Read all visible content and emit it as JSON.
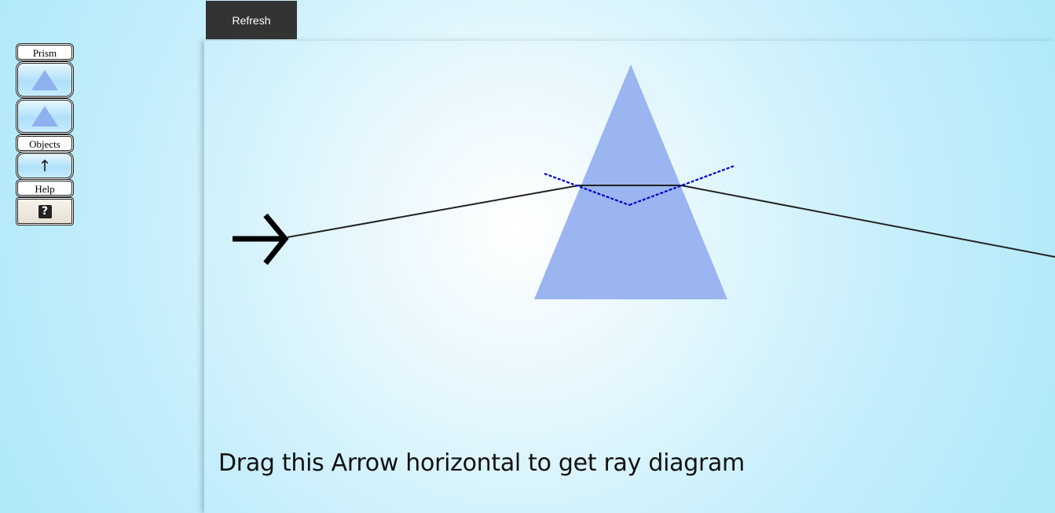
{
  "toolbar": {
    "refresh_label": "Refresh"
  },
  "sidebar": {
    "prism_label": "Prism",
    "objects_label": "Objects",
    "help_label": "Help",
    "items": [
      {
        "name": "prism-tool-1",
        "icon": "triangle-prism-icon"
      },
      {
        "name": "prism-tool-2",
        "icon": "triangle-prism-icon"
      },
      {
        "name": "arrow-object-tool",
        "icon": "up-arrow-icon",
        "glyph": "↑"
      },
      {
        "name": "help-tool",
        "icon": "question-mark-icon",
        "glyph": "?"
      }
    ]
  },
  "diagram": {
    "prism_color": "#9ab5f0",
    "ray_color": "#222222",
    "normal_color": "#0000cc",
    "object_glyph": "→"
  },
  "instruction": "Drag this Arrow horizontal to get ray diagram"
}
